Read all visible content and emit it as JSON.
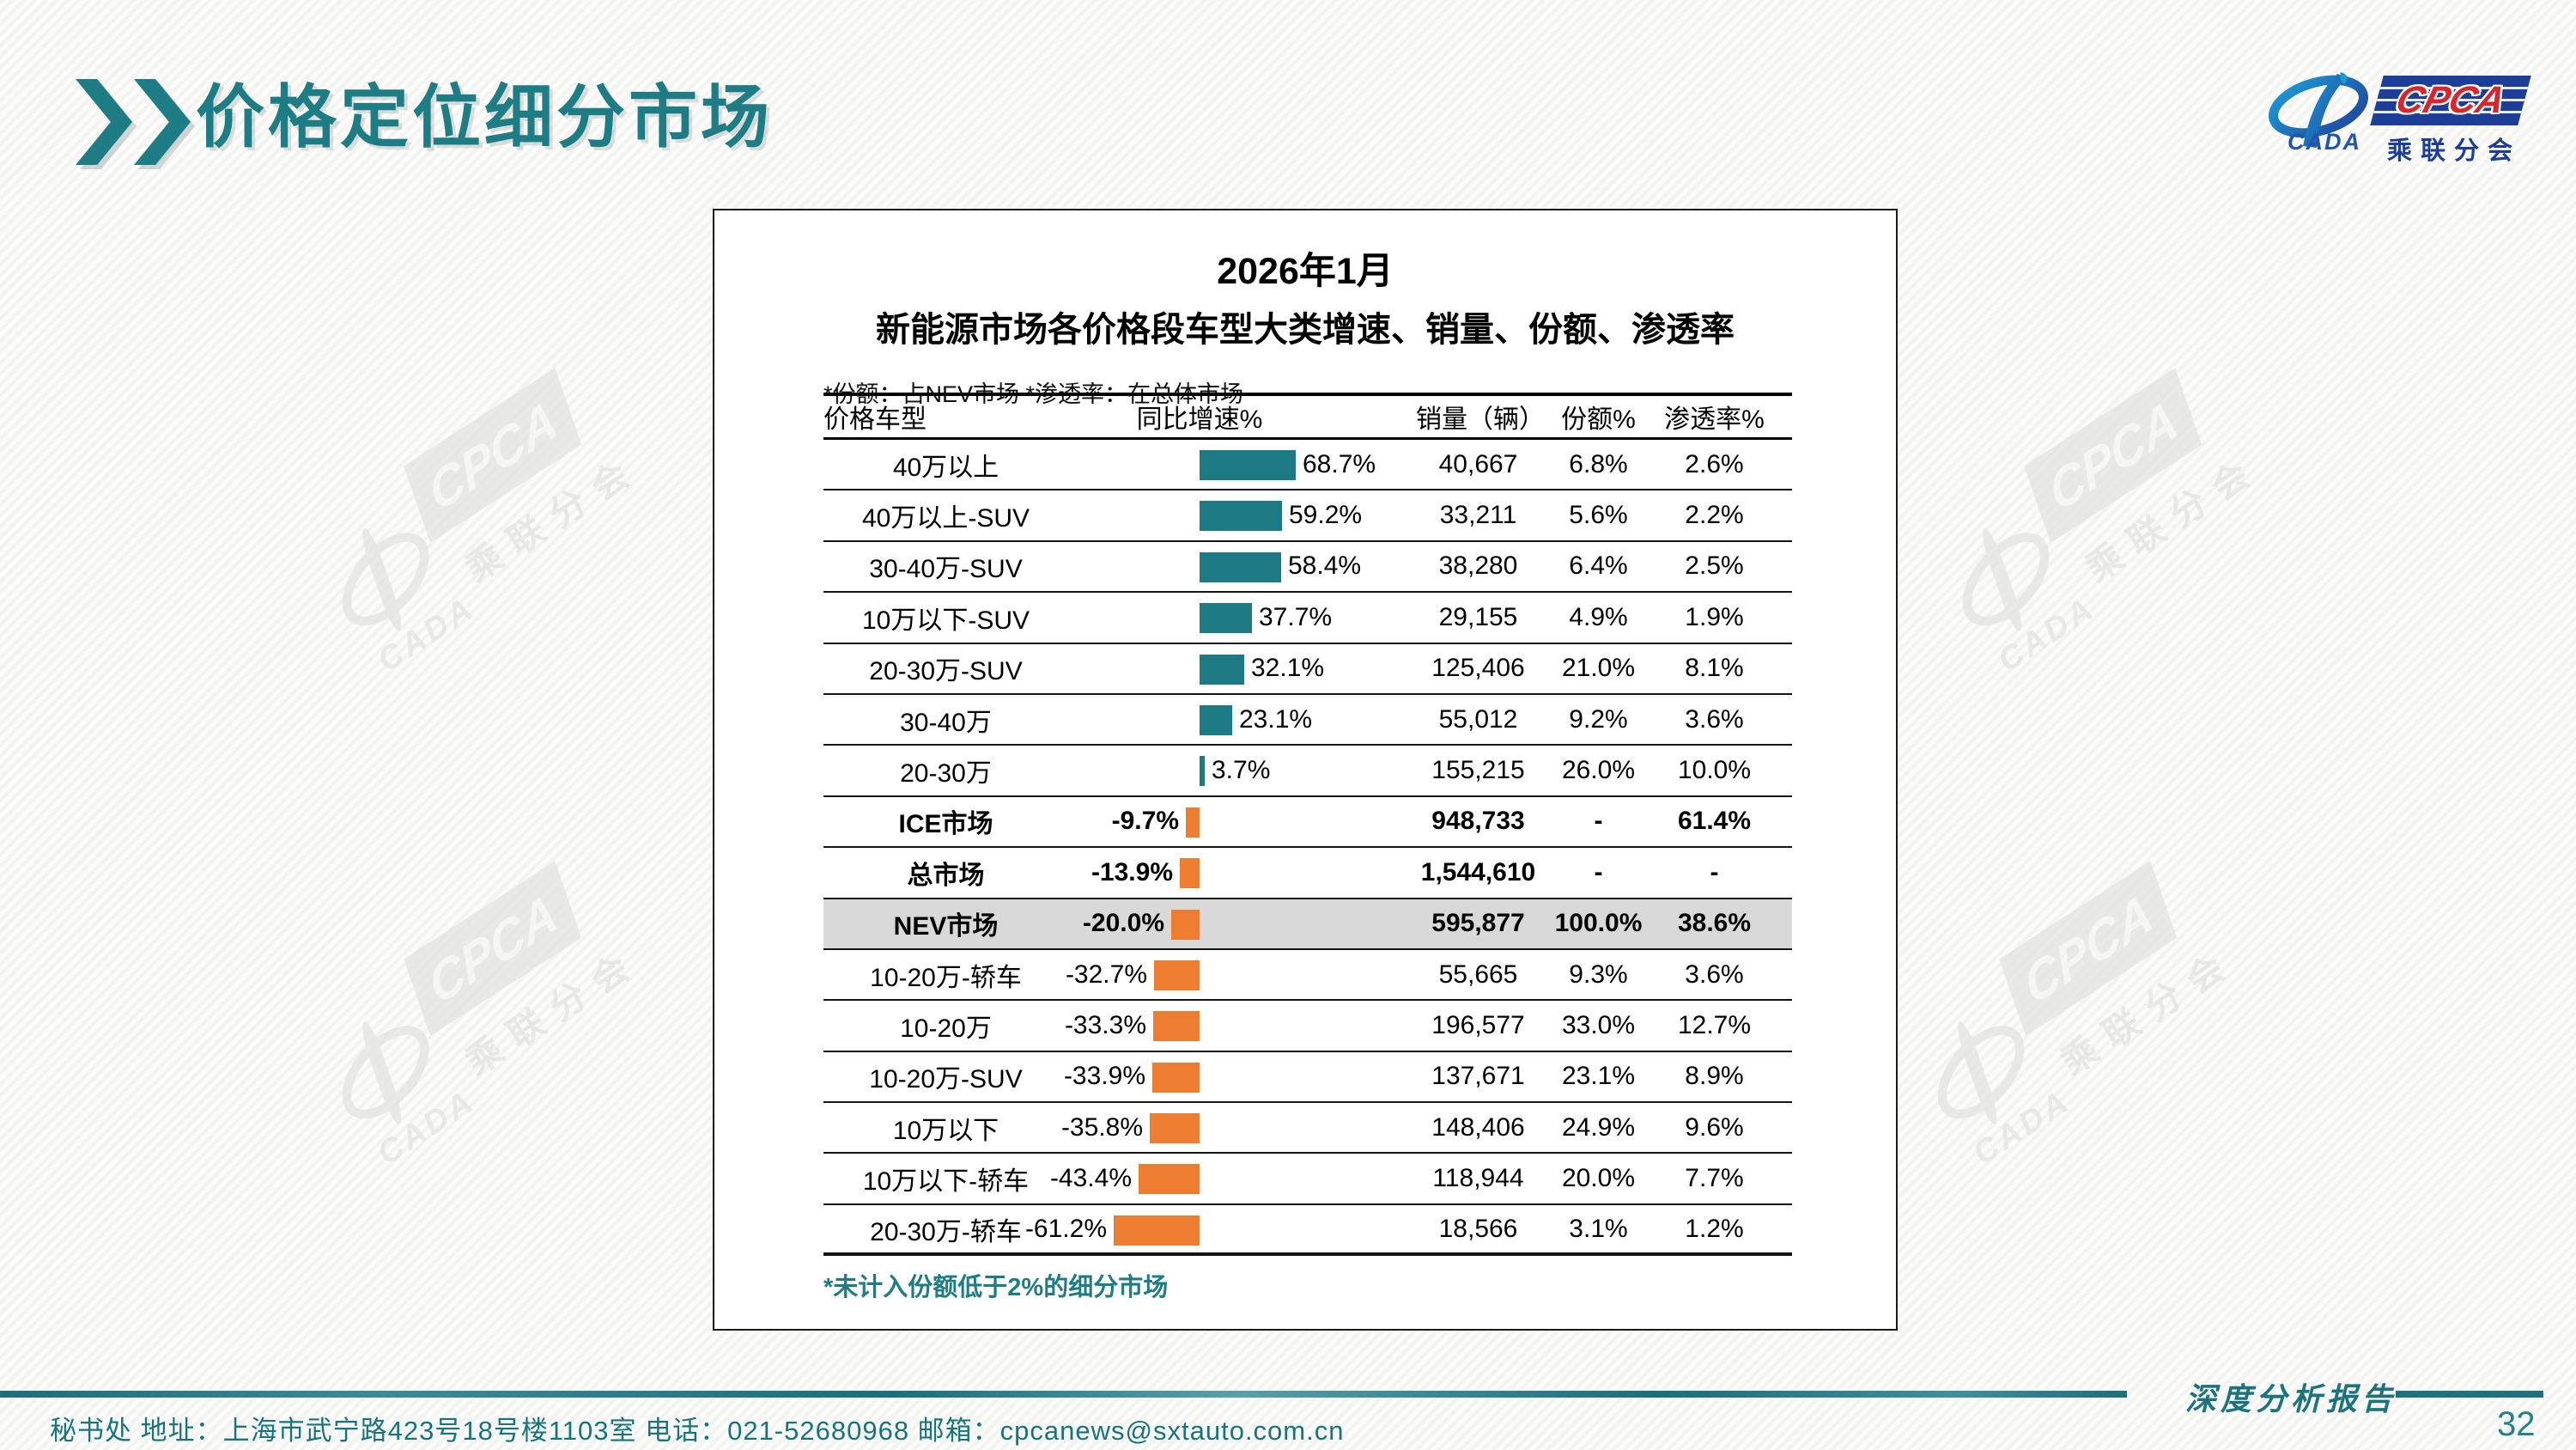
{
  "slide_title": "价格定位细分市场",
  "logo": {
    "cpca": "CPCA",
    "cada": "CADA",
    "branch": "乘联分会"
  },
  "watermark": {
    "cpca": "CPCA",
    "cada": "CADA",
    "branch": "乘联分会"
  },
  "panel": {
    "title_line1": "2026年1月",
    "title_line2": "新能源市场各价格段车型大类增速、销量、份额、渗透率",
    "note": "*份额：占NEV市场  *渗透率：在总体市场",
    "footnote": "*未计入份额低于2%的细分市场",
    "headers": {
      "category": "价格车型",
      "growth": "同比增速%",
      "sales": "销量（辆）",
      "share": "份额%",
      "penetration": "渗透率%"
    }
  },
  "table_rows": [
    {
      "category": "40万以上",
      "growth": "68.7%",
      "sales": "40,667",
      "share": "6.8%",
      "penetration": "2.6%",
      "emphasis": false,
      "highlight": false
    },
    {
      "category": "40万以上-SUV",
      "growth": "59.2%",
      "sales": "33,211",
      "share": "5.6%",
      "penetration": "2.2%",
      "emphasis": false,
      "highlight": false
    },
    {
      "category": "30-40万-SUV",
      "growth": "58.4%",
      "sales": "38,280",
      "share": "6.4%",
      "penetration": "2.5%",
      "emphasis": false,
      "highlight": false
    },
    {
      "category": "10万以下-SUV",
      "growth": "37.7%",
      "sales": "29,155",
      "share": "4.9%",
      "penetration": "1.9%",
      "emphasis": false,
      "highlight": false
    },
    {
      "category": "20-30万-SUV",
      "growth": "32.1%",
      "sales": "125,406",
      "share": "21.0%",
      "penetration": "8.1%",
      "emphasis": false,
      "highlight": false
    },
    {
      "category": "30-40万",
      "growth": "23.1%",
      "sales": "55,012",
      "share": "9.2%",
      "penetration": "3.6%",
      "emphasis": false,
      "highlight": false
    },
    {
      "category": "20-30万",
      "growth": "3.7%",
      "sales": "155,215",
      "share": "26.0%",
      "penetration": "10.0%",
      "emphasis": false,
      "highlight": false
    },
    {
      "category": "ICE市场",
      "growth": "-9.7%",
      "sales": "948,733",
      "share": "-",
      "penetration": "61.4%",
      "emphasis": true,
      "highlight": false
    },
    {
      "category": "总市场",
      "growth": "-13.9%",
      "sales": "1,544,610",
      "share": "-",
      "penetration": "-",
      "emphasis": true,
      "highlight": false
    },
    {
      "category": "NEV市场",
      "growth": "-20.0%",
      "sales": "595,877",
      "share": "100.0%",
      "penetration": "38.6%",
      "emphasis": true,
      "highlight": true
    },
    {
      "category": "10-20万-轿车",
      "growth": "-32.7%",
      "sales": "55,665",
      "share": "9.3%",
      "penetration": "3.6%",
      "emphasis": false,
      "highlight": false
    },
    {
      "category": "10-20万",
      "growth": "-33.3%",
      "sales": "196,577",
      "share": "33.0%",
      "penetration": "12.7%",
      "emphasis": false,
      "highlight": false
    },
    {
      "category": "10-20万-SUV",
      "growth": "-33.9%",
      "sales": "137,671",
      "share": "23.1%",
      "penetration": "8.9%",
      "emphasis": false,
      "highlight": false
    },
    {
      "category": "10万以下",
      "growth": "-35.8%",
      "sales": "148,406",
      "share": "24.9%",
      "penetration": "9.6%",
      "emphasis": false,
      "highlight": false
    },
    {
      "category": "10万以下-轿车",
      "growth": "-43.4%",
      "sales": "118,944",
      "share": "20.0%",
      "penetration": "7.7%",
      "emphasis": false,
      "highlight": false
    },
    {
      "category": "20-30万-轿车",
      "growth": "-61.2%",
      "sales": "18,566",
      "share": "3.1%",
      "penetration": "1.2%",
      "emphasis": false,
      "highlight": false
    }
  ],
  "footer": {
    "info": "秘书处  地址：上海市武宁路423号18号楼1103室 电话：021-52680968  邮箱：cpcanews@sxtauto.com.cn",
    "report": "深度分析报告",
    "page": "32"
  },
  "colors": {
    "title_teal": "#1e7c85",
    "positive_bar": "#1b7a83",
    "negative_bar": "#ed7d31",
    "highlight_bg": "#d9d9d9"
  },
  "chart_data": {
    "type": "bar",
    "orientation": "horizontal",
    "title": "2026年1月 新能源市场各价格段车型大类增速、销量、份额、渗透率",
    "notes": [
      "*份额：占NEV市场",
      "*渗透率：在总体市场",
      "*未计入份额低于2%的细分市场"
    ],
    "categories": [
      "40万以上",
      "40万以上-SUV",
      "30-40万-SUV",
      "10万以下-SUV",
      "20-30万-SUV",
      "30-40万",
      "20-30万",
      "ICE市场",
      "总市场",
      "NEV市场",
      "10-20万-轿车",
      "10-20万",
      "10-20万-SUV",
      "10万以下",
      "10万以下-轿车",
      "20-30万-轿车"
    ],
    "series": [
      {
        "name": "同比增速%",
        "values": [
          68.7,
          59.2,
          58.4,
          37.7,
          32.1,
          23.1,
          3.7,
          -9.7,
          -13.9,
          -20.0,
          -32.7,
          -33.3,
          -33.9,
          -35.8,
          -43.4,
          -61.2
        ]
      },
      {
        "name": "销量（辆）",
        "values": [
          40667,
          33211,
          38280,
          29155,
          125406,
          55012,
          155215,
          948733,
          1544610,
          595877,
          55665,
          196577,
          137671,
          148406,
          118944,
          18566
        ]
      },
      {
        "name": "份额%",
        "values": [
          6.8,
          5.6,
          6.4,
          4.9,
          21.0,
          9.2,
          26.0,
          null,
          null,
          100.0,
          9.3,
          33.0,
          23.1,
          24.9,
          20.0,
          3.1
        ]
      },
      {
        "name": "渗透率%",
        "values": [
          2.6,
          2.2,
          2.5,
          1.9,
          8.1,
          3.6,
          10.0,
          61.4,
          null,
          38.6,
          3.6,
          12.7,
          8.9,
          9.6,
          7.7,
          1.2
        ]
      }
    ],
    "positive_color": "#1b7a83",
    "negative_color": "#ed7d31",
    "highlighted_category": "NEV市场",
    "legend": false,
    "grid": false
  }
}
